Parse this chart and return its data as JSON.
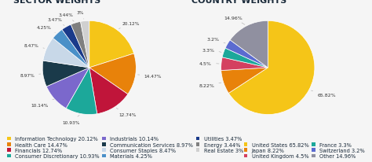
{
  "sector_title": "SECTOR WEIGHTS",
  "sector_labels": [
    "Information Technology",
    "Health Care",
    "Financials",
    "Consumer Discretionary",
    "Industrials",
    "Communication Services",
    "Consumer Staples",
    "Materials",
    "Utilities",
    "Energy",
    "Real Estate"
  ],
  "sector_values": [
    20.12,
    14.47,
    12.74,
    10.93,
    10.14,
    8.97,
    8.47,
    4.25,
    3.47,
    3.44,
    3.0
  ],
  "sector_colors": [
    "#F5C518",
    "#E8820A",
    "#C0153A",
    "#1CA89A",
    "#7B68CC",
    "#1A3A4A",
    "#C8D8E8",
    "#4A90C8",
    "#1A3A8A",
    "#808080",
    "#D0D0D0"
  ],
  "sector_pct_labels": [
    "20.12%",
    "14.47%",
    "12.74%",
    "10.93%",
    "10.14%",
    "8.97%",
    "8.47%",
    "4.25%",
    "3.47%",
    "3.44%",
    "3%"
  ],
  "country_title": "COUNTRY WEIGHTS",
  "country_labels": [
    "United States",
    "Japan",
    "United Kingdom",
    "France",
    "Switzerland",
    "Other"
  ],
  "country_values": [
    65.82,
    8.22,
    4.5,
    3.3,
    3.2,
    14.96
  ],
  "country_colors": [
    "#F5C518",
    "#E8820A",
    "#D44060",
    "#1CA89A",
    "#5B6BD0",
    "#9090A0"
  ],
  "country_pct_labels": [
    "65.82%",
    "8.22%",
    "4.5%",
    "3.3%",
    "3.2%",
    "14.96%"
  ],
  "bg_color": "#f5f5f5",
  "title_color": "#1a2a3a",
  "label_fontsize": 5.5,
  "title_fontsize": 8,
  "legend_fontsize": 4.8
}
